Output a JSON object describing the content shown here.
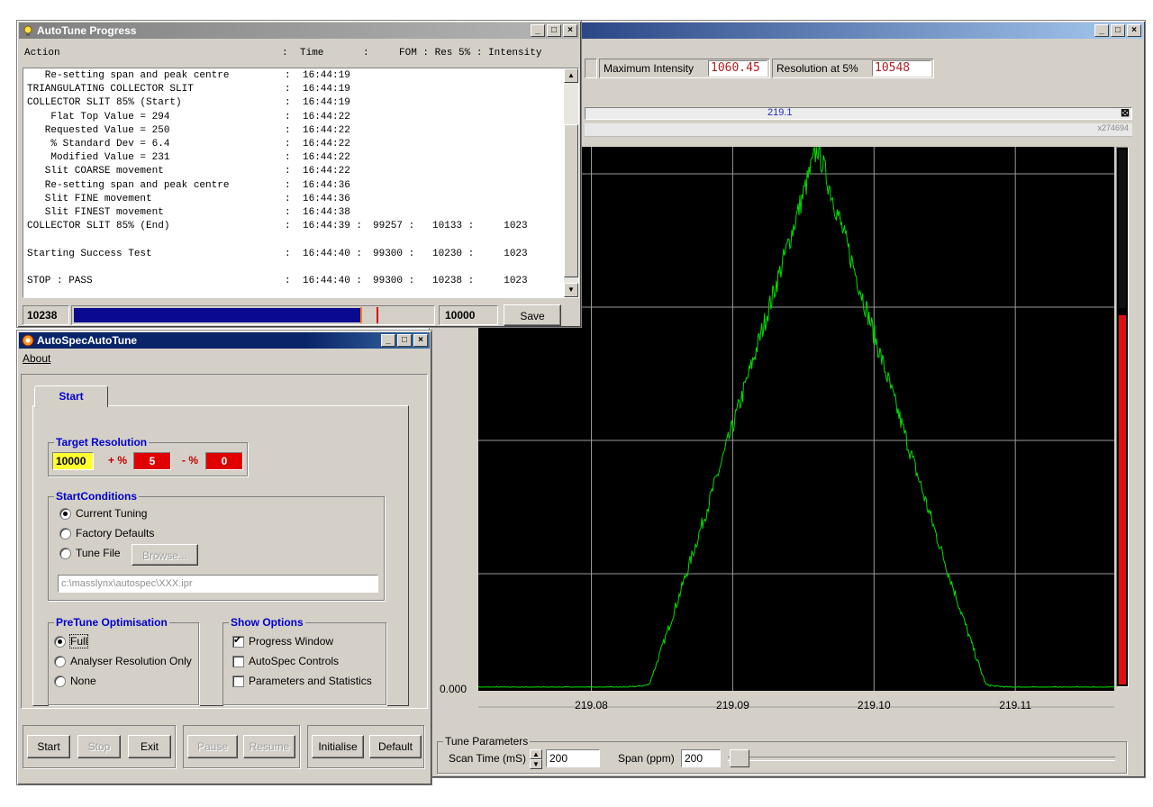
{
  "main_window": {
    "maximum_intensity_label": "Maximum Intensity",
    "maximum_intensity_value": "1060.45",
    "resolution_label": "Resolution at 5%",
    "resolution_value": "10548",
    "center_mass": "219.1",
    "right_label": "x274694",
    "tune_parameters_title": "Tune Parameters",
    "scan_time_label": "Scan Time (mS)",
    "scan_time_value": "200",
    "span_label": "Span (ppm)",
    "span_value": "200"
  },
  "chart_data": {
    "type": "line",
    "x_ticks": [
      "219.08",
      "219.09",
      "219.10",
      "219.11"
    ],
    "y_tick_label": "0.000",
    "xlim": [
      219.072,
      219.117
    ],
    "ylim": [
      0,
      1
    ],
    "grid": true,
    "series_color": "#00dd00",
    "peak_x": 219.096,
    "peak_half_width": 0.012,
    "peak_relative_height": 1.0
  },
  "progress_window": {
    "title": "AutoTune Progress",
    "header": {
      "action": "Action",
      "sep1": ":",
      "time": "Time",
      "sep2": ":",
      "rest": "FOM : Res 5% : Intensity"
    },
    "rows": [
      {
        "action": "   Re-setting span and peak centre",
        "sep": ":",
        "time": "16:44:19",
        "extra": ""
      },
      {
        "action": "TRIANGULATING COLLECTOR SLIT",
        "sep": ":",
        "time": "16:44:19",
        "extra": ""
      },
      {
        "action": "COLLECTOR SLIT 85% (Start)",
        "sep": ":",
        "time": "16:44:19",
        "extra": ""
      },
      {
        "action": "    Flat Top Value = 294",
        "sep": ":",
        "time": "16:44:22",
        "extra": ""
      },
      {
        "action": "   Requested Value = 250",
        "sep": ":",
        "time": "16:44:22",
        "extra": ""
      },
      {
        "action": "    % Standard Dev = 6.4",
        "sep": ":",
        "time": "16:44:22",
        "extra": ""
      },
      {
        "action": "    Modified Value = 231",
        "sep": ":",
        "time": "16:44:22",
        "extra": ""
      },
      {
        "action": "   Slit COARSE movement",
        "sep": ":",
        "time": "16:44:22",
        "extra": ""
      },
      {
        "action": "   Re-setting span and peak centre",
        "sep": ":",
        "time": "16:44:36",
        "extra": ""
      },
      {
        "action": "   Slit FINE movement",
        "sep": ":",
        "time": "16:44:36",
        "extra": ""
      },
      {
        "action": "   Slit FINEST movement",
        "sep": ":",
        "time": "16:44:38",
        "extra": ""
      },
      {
        "action": "COLLECTOR SLIT 85% (End)",
        "sep": ":",
        "time": "16:44:39 :",
        "extra": "99257 :   10133 :     1023"
      },
      {
        "action": "",
        "sep": "",
        "time": "",
        "extra": ""
      },
      {
        "action": "Starting Success Test",
        "sep": ":",
        "time": "16:44:40 :",
        "extra": "99300 :   10230 :     1023"
      },
      {
        "action": "",
        "sep": "",
        "time": "",
        "extra": ""
      },
      {
        "action": "STOP : PASS",
        "sep": ":",
        "time": "16:44:40 :",
        "extra": "99300 :   10238 :     1023"
      }
    ],
    "current_value": "10238",
    "target_value": "10000",
    "save_label": "Save"
  },
  "autotune_window": {
    "title": "AutoSpecAutoTune",
    "menu_about": "About",
    "tab_start": "Start",
    "target_resolution": {
      "title": "Target Resolution",
      "value": "10000",
      "plus_label": "+ %",
      "plus_value": "5",
      "minus_label": "- %",
      "minus_value": "0"
    },
    "start_conditions": {
      "title": "StartConditions",
      "current_tuning": "Current Tuning",
      "factory_defaults": "Factory Defaults",
      "tune_file": "Tune File",
      "browse": "Browse...",
      "file_path": "c:\\masslynx\\autospec\\XXX.ipr"
    },
    "pretune": {
      "title": "PreTune Optimisation",
      "full": "Full",
      "analyser": "Analyser Resolution Only",
      "none": "None"
    },
    "show_options": {
      "title": "Show Options",
      "progress_window": "Progress Window",
      "autospec_controls": "AutoSpec Controls",
      "parameters_statistics": "Parameters and Statistics"
    },
    "buttons": {
      "start": "Start",
      "stop": "Stop",
      "exit": "Exit",
      "pause": "Pause",
      "resume": "Resume",
      "initialise": "Initialise",
      "default": "Default"
    }
  }
}
